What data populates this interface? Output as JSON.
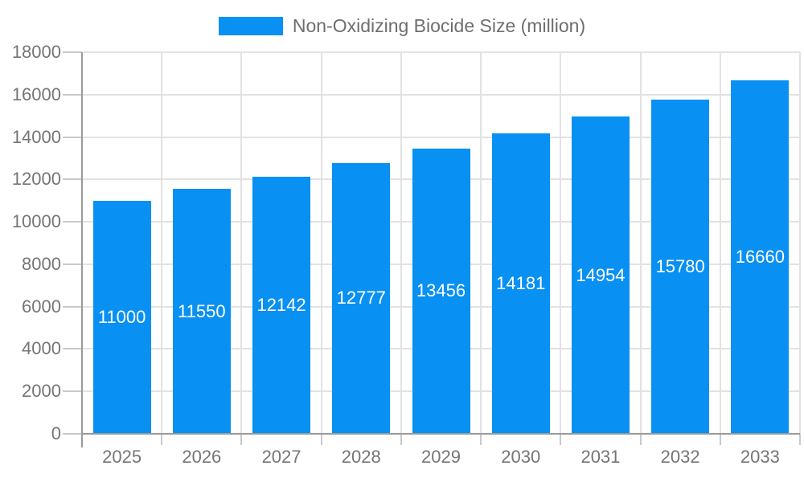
{
  "chart_data": {
    "type": "bar",
    "title": "Non-Oxidizing Biocide Size (million)",
    "legend": [
      "Non-Oxidizing Biocide Size (million)"
    ],
    "legend_position": "top",
    "categories": [
      "2025",
      "2026",
      "2027",
      "2028",
      "2029",
      "2030",
      "2031",
      "2032",
      "2033"
    ],
    "values": [
      11000,
      11550,
      12142,
      12777,
      13456,
      14181,
      14954,
      15780,
      16660
    ],
    "xlabel": "",
    "ylabel": "",
    "ylim": [
      0,
      18000
    ],
    "ytick_step": 2000,
    "ytick_labels": [
      "0",
      "2000",
      "4000",
      "6000",
      "8000",
      "10000",
      "12000",
      "14000",
      "16000",
      "18000"
    ],
    "grid": true,
    "bar_value_labels_shown": true
  },
  "colors": {
    "bar": "#0890f2",
    "bar_value_text": "#ffffff",
    "grid": "#e2e2e2",
    "axis": "#9a9a9a",
    "tick": "#c9c9c9",
    "axis_text": "#757575",
    "legend_text": "#6e6e6e",
    "background": "#ffffff"
  }
}
